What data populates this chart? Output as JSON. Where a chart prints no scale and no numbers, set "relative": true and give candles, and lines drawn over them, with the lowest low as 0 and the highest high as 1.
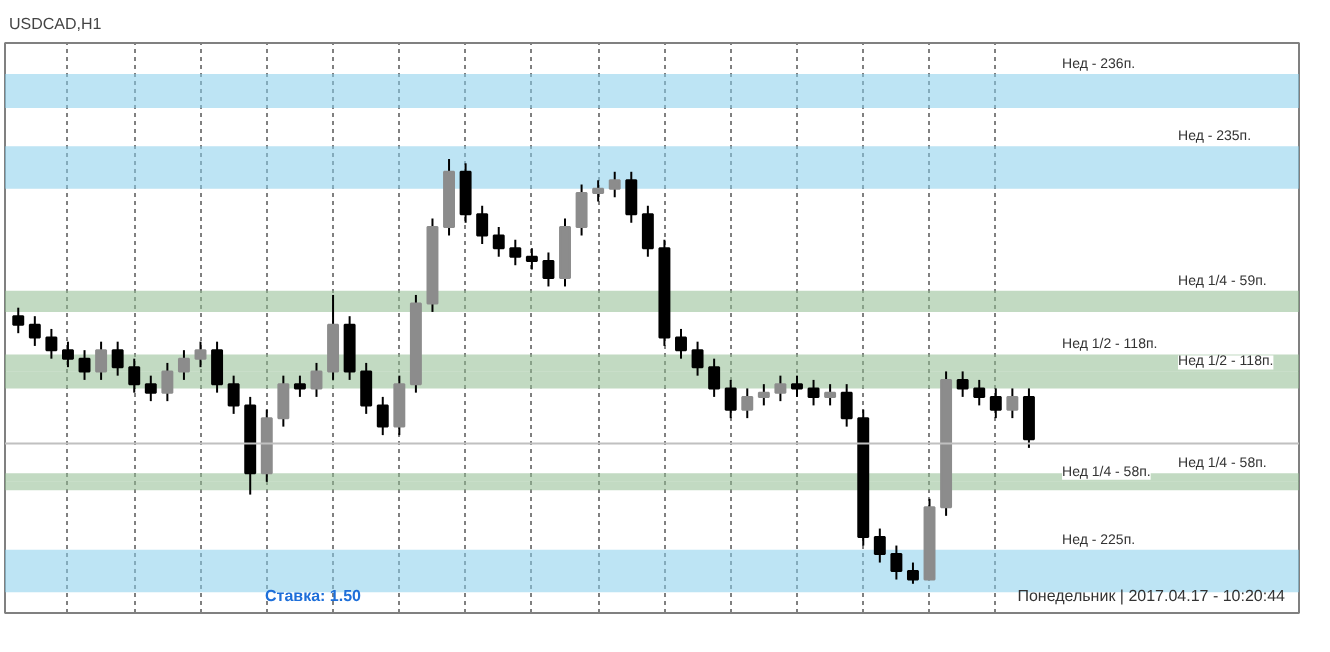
{
  "chart_data": {
    "type": "candlestick",
    "relative": true,
    "title": "USDCAD,H1",
    "categories": [
      null,
      null,
      null,
      null,
      null,
      null,
      null,
      null,
      null,
      null,
      null,
      null,
      null,
      null,
      null,
      null,
      null,
      null,
      null,
      null,
      null,
      null,
      null,
      null,
      null,
      null,
      null,
      null,
      null,
      null,
      null,
      null,
      null,
      null,
      null,
      null,
      null,
      null,
      null,
      null,
      null,
      null,
      null,
      null,
      null,
      null,
      null,
      null,
      null,
      null,
      null,
      null,
      null,
      null,
      null,
      null,
      null,
      null,
      null,
      null,
      null,
      null
    ],
    "ohlc": [
      [
        0.63,
        0.65,
        0.59,
        0.61
      ],
      [
        0.61,
        0.63,
        0.56,
        0.58
      ],
      [
        0.58,
        0.6,
        0.53,
        0.55
      ],
      [
        0.55,
        0.57,
        0.51,
        0.53
      ],
      [
        0.53,
        0.55,
        0.48,
        0.5
      ],
      [
        0.5,
        0.57,
        0.48,
        0.55
      ],
      [
        0.55,
        0.57,
        0.49,
        0.51
      ],
      [
        0.51,
        0.53,
        0.45,
        0.47
      ],
      [
        0.47,
        0.49,
        0.43,
        0.45
      ],
      [
        0.45,
        0.52,
        0.43,
        0.5
      ],
      [
        0.5,
        0.55,
        0.48,
        0.53
      ],
      [
        0.53,
        0.57,
        0.51,
        0.55
      ],
      [
        0.55,
        0.57,
        0.45,
        0.47
      ],
      [
        0.47,
        0.49,
        0.4,
        0.42
      ],
      [
        0.42,
        0.44,
        0.21,
        0.26
      ],
      [
        0.26,
        0.41,
        0.24,
        0.39
      ],
      [
        0.39,
        0.49,
        0.37,
        0.47
      ],
      [
        0.47,
        0.49,
        0.44,
        0.46
      ],
      [
        0.46,
        0.52,
        0.44,
        0.5
      ],
      [
        0.5,
        0.68,
        0.48,
        0.61
      ],
      [
        0.61,
        0.63,
        0.48,
        0.5
      ],
      [
        0.5,
        0.52,
        0.4,
        0.42
      ],
      [
        0.42,
        0.44,
        0.35,
        0.37
      ],
      [
        0.37,
        0.49,
        0.35,
        0.47
      ],
      [
        0.47,
        0.68,
        0.45,
        0.66
      ],
      [
        0.66,
        0.86,
        0.64,
        0.84
      ],
      [
        0.84,
        1.0,
        0.82,
        0.97
      ],
      [
        0.97,
        0.99,
        0.85,
        0.87
      ],
      [
        0.87,
        0.89,
        0.8,
        0.82
      ],
      [
        0.82,
        0.84,
        0.77,
        0.79
      ],
      [
        0.79,
        0.81,
        0.75,
        0.77
      ],
      [
        0.77,
        0.79,
        0.74,
        0.76
      ],
      [
        0.76,
        0.78,
        0.7,
        0.72
      ],
      [
        0.72,
        0.86,
        0.7,
        0.84
      ],
      [
        0.84,
        0.94,
        0.82,
        0.92
      ],
      [
        0.92,
        0.95,
        0.9,
        0.93
      ],
      [
        0.93,
        0.97,
        0.91,
        0.95
      ],
      [
        0.95,
        0.97,
        0.85,
        0.87
      ],
      [
        0.87,
        0.89,
        0.77,
        0.79
      ],
      [
        0.79,
        0.81,
        0.56,
        0.58
      ],
      [
        0.58,
        0.6,
        0.53,
        0.55
      ],
      [
        0.55,
        0.57,
        0.49,
        0.51
      ],
      [
        0.51,
        0.53,
        0.44,
        0.46
      ],
      [
        0.46,
        0.48,
        0.39,
        0.41
      ],
      [
        0.41,
        0.46,
        0.39,
        0.44
      ],
      [
        0.44,
        0.47,
        0.42,
        0.45
      ],
      [
        0.45,
        0.49,
        0.43,
        0.47
      ],
      [
        0.47,
        0.49,
        0.44,
        0.46
      ],
      [
        0.46,
        0.48,
        0.42,
        0.44
      ],
      [
        0.44,
        0.47,
        0.42,
        0.45
      ],
      [
        0.45,
        0.47,
        0.37,
        0.39
      ],
      [
        0.39,
        0.41,
        0.09,
        0.11
      ],
      [
        0.11,
        0.13,
        0.05,
        0.07
      ],
      [
        0.07,
        0.09,
        0.01,
        0.03
      ],
      [
        0.03,
        0.05,
        0.0,
        0.01
      ],
      [
        0.01,
        0.2,
        0.01,
        0.18
      ],
      [
        0.18,
        0.5,
        0.16,
        0.48
      ],
      [
        0.48,
        0.5,
        0.44,
        0.46
      ],
      [
        0.46,
        0.48,
        0.42,
        0.44
      ],
      [
        0.44,
        0.46,
        0.39,
        0.41
      ],
      [
        0.41,
        0.46,
        0.39,
        0.44
      ],
      [
        0.44,
        0.46,
        0.32,
        0.34
      ]
    ],
    "grid": "x",
    "tick_labels": false,
    "bands": [
      {
        "axis": "y",
        "from": 1.12,
        "to": 1.2,
        "label": "Нед - 236п.",
        "color": "#87ceeb"
      },
      {
        "axis": "y",
        "from": 0.93,
        "to": 1.03,
        "label": "Нед - 235п.",
        "color": "#87ceeb"
      },
      {
        "axis": "y",
        "from": -0.02,
        "to": 0.08,
        "label": "Нед - 225п.",
        "color": "#87ceeb"
      },
      {
        "axis": "y",
        "from": 0.64,
        "to": 0.69,
        "label": "Нед 1/4 - 59п.",
        "color": "#8fbc8f"
      },
      {
        "axis": "y",
        "from": 0.5,
        "to": 0.54,
        "label": "Нед 1/2 - 118п.",
        "color": "#8fbc8f"
      },
      {
        "axis": "y",
        "from": 0.46,
        "to": 0.5,
        "label": "Нед 1/2 - 118п.",
        "color": "#8fbc8f"
      },
      {
        "axis": "y",
        "from": 0.22,
        "to": 0.24,
        "label": "Нед 1/4 - 58п.",
        "color": "#8fbc8f"
      },
      {
        "axis": "y",
        "from": 0.24,
        "to": 0.26,
        "label": "Нед 1/4 - 58п.",
        "color": "#8fbc8f"
      }
    ],
    "ref_lines": [
      {
        "axis": "y",
        "value": 0.33,
        "color": "#c0c0c0"
      }
    ],
    "annotations": [
      "Ставка: 1.50",
      "Понедельник | 2017.04.17 - 10:20:44"
    ]
  }
}
